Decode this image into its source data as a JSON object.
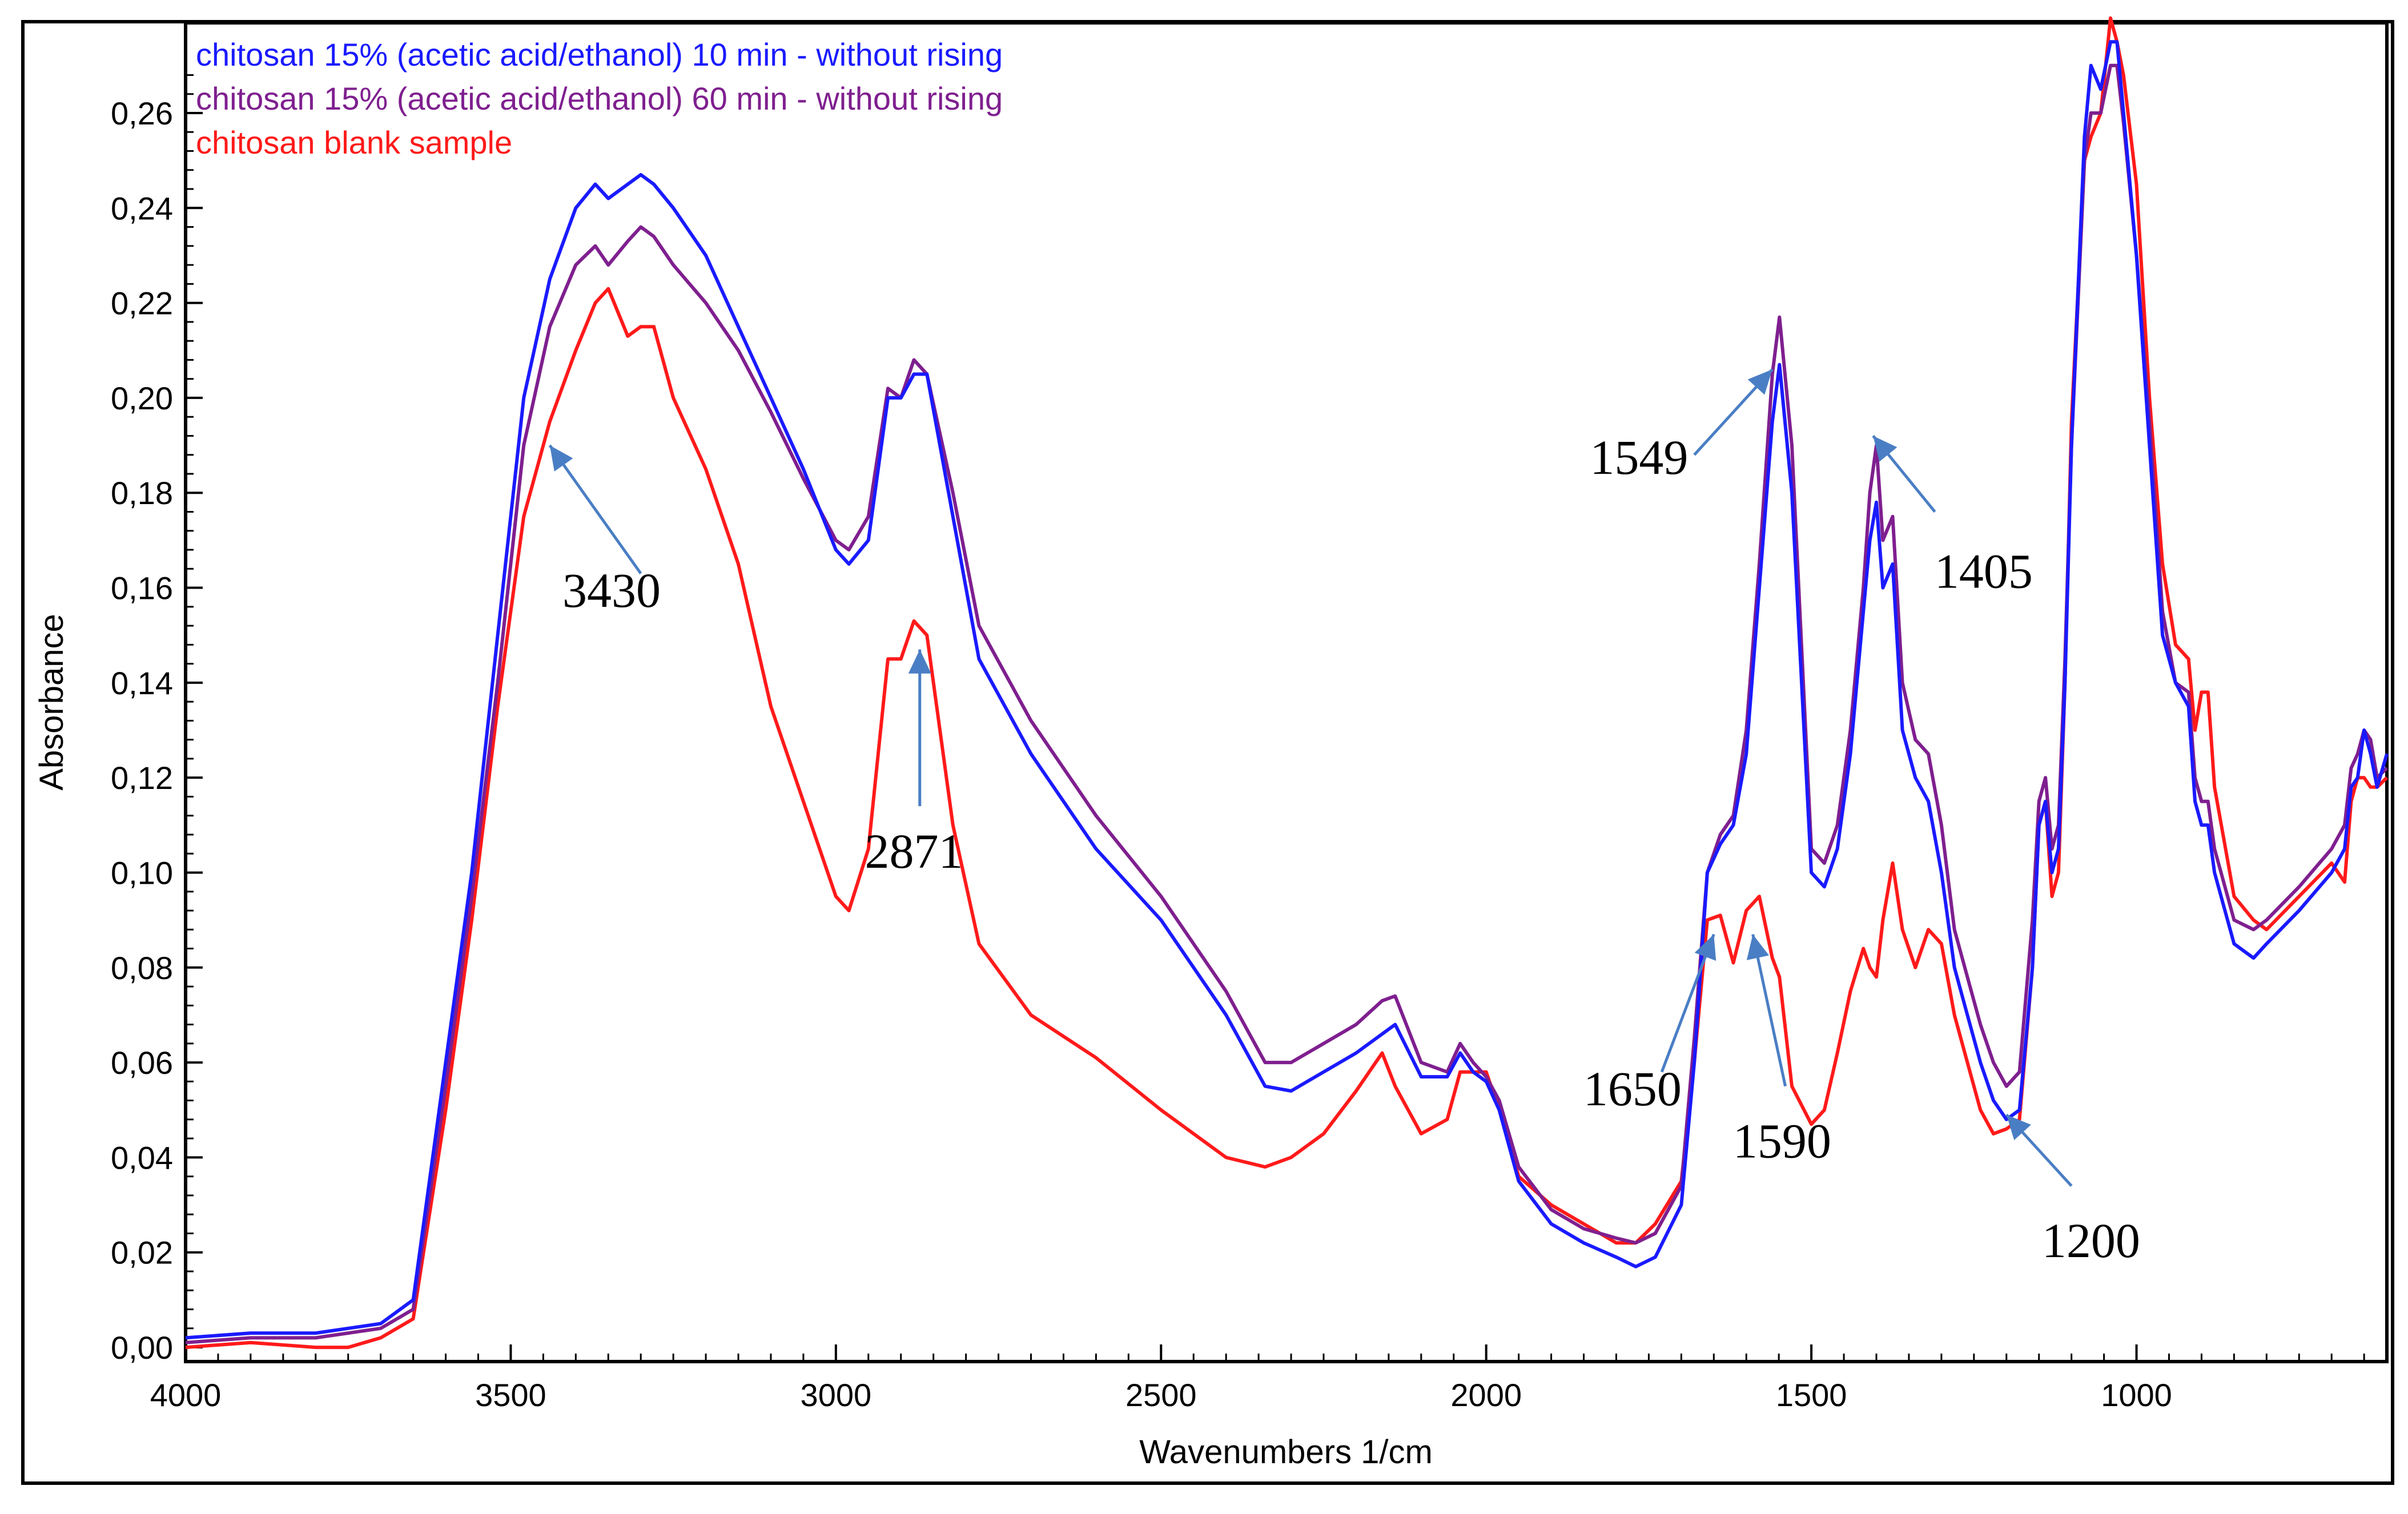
{
  "chart_data": {
    "type": "line",
    "title": "",
    "xlabel": "Wavenumbers 1/cm",
    "ylabel": "Absorbance",
    "xlim": [
      4000,
      615
    ],
    "ylim": [
      -0.003,
      0.279
    ],
    "x_ticks": [
      {
        "value": 4000,
        "label": "4000"
      },
      {
        "value": 3500,
        "label": "3500"
      },
      {
        "value": 3000,
        "label": "3000"
      },
      {
        "value": 2500,
        "label": "2500"
      },
      {
        "value": 2000,
        "label": "2000"
      },
      {
        "value": 1500,
        "label": "1500"
      },
      {
        "value": 1000,
        "label": "1000"
      }
    ],
    "y_ticks": [
      {
        "value": 0.0,
        "label": "0,00"
      },
      {
        "value": 0.02,
        "label": "0,02"
      },
      {
        "value": 0.04,
        "label": "0,04"
      },
      {
        "value": 0.06,
        "label": "0,06"
      },
      {
        "value": 0.08,
        "label": "0,08"
      },
      {
        "value": 0.1,
        "label": "0,10"
      },
      {
        "value": 0.12,
        "label": "0,12"
      },
      {
        "value": 0.14,
        "label": "0,14"
      },
      {
        "value": 0.16,
        "label": "0,16"
      },
      {
        "value": 0.18,
        "label": "0,18"
      },
      {
        "value": 0.2,
        "label": "0,20"
      },
      {
        "value": 0.22,
        "label": "0,22"
      },
      {
        "value": 0.24,
        "label": "0,24"
      },
      {
        "value": 0.26,
        "label": "0,26"
      }
    ],
    "legend_position": "top-left",
    "series": [
      {
        "name": "chitosan 15% (acetic acid/ethanol) 10 min - without rising",
        "color": "#1a1aff",
        "x": [
          4000,
          3900,
          3800,
          3750,
          3700,
          3650,
          3600,
          3560,
          3520,
          3480,
          3440,
          3400,
          3370,
          3350,
          3320,
          3300,
          3280,
          3250,
          3200,
          3150,
          3100,
          3050,
          3000,
          2980,
          2950,
          2920,
          2900,
          2880,
          2860,
          2820,
          2780,
          2700,
          2600,
          2500,
          2400,
          2340,
          2300,
          2250,
          2200,
          2160,
          2140,
          2100,
          2060,
          2040,
          2020,
          2000,
          1980,
          1950,
          1900,
          1850,
          1800,
          1770,
          1740,
          1700,
          1680,
          1660,
          1640,
          1620,
          1600,
          1580,
          1560,
          1549,
          1530,
          1500,
          1480,
          1460,
          1440,
          1420,
          1410,
          1400,
          1390,
          1375,
          1360,
          1340,
          1320,
          1300,
          1280,
          1260,
          1240,
          1220,
          1200,
          1180,
          1160,
          1150,
          1140,
          1130,
          1120,
          1110,
          1100,
          1080,
          1070,
          1055,
          1040,
          1030,
          1020,
          1000,
          980,
          960,
          940,
          920,
          910,
          900,
          890,
          880,
          850,
          820,
          800,
          750,
          700,
          680,
          670,
          660,
          650,
          640,
          630,
          615
        ],
        "y": [
          0.002,
          0.003,
          0.003,
          0.004,
          0.005,
          0.01,
          0.06,
          0.1,
          0.15,
          0.2,
          0.225,
          0.24,
          0.245,
          0.242,
          0.245,
          0.247,
          0.245,
          0.24,
          0.23,
          0.215,
          0.2,
          0.185,
          0.168,
          0.165,
          0.17,
          0.2,
          0.2,
          0.205,
          0.205,
          0.175,
          0.145,
          0.125,
          0.105,
          0.09,
          0.07,
          0.055,
          0.054,
          0.058,
          0.062,
          0.066,
          0.068,
          0.057,
          0.057,
          0.062,
          0.058,
          0.056,
          0.05,
          0.035,
          0.026,
          0.022,
          0.019,
          0.017,
          0.019,
          0.03,
          0.06,
          0.1,
          0.106,
          0.11,
          0.125,
          0.16,
          0.195,
          0.207,
          0.18,
          0.1,
          0.097,
          0.105,
          0.125,
          0.155,
          0.17,
          0.178,
          0.16,
          0.165,
          0.13,
          0.12,
          0.115,
          0.1,
          0.08,
          0.07,
          0.06,
          0.052,
          0.048,
          0.05,
          0.08,
          0.11,
          0.115,
          0.1,
          0.105,
          0.14,
          0.19,
          0.255,
          0.27,
          0.265,
          0.275,
          0.275,
          0.26,
          0.23,
          0.19,
          0.15,
          0.14,
          0.135,
          0.115,
          0.11,
          0.11,
          0.1,
          0.085,
          0.082,
          0.085,
          0.092,
          0.1,
          0.105,
          0.118,
          0.12,
          0.13,
          0.125,
          0.118,
          0.125
        ]
      },
      {
        "name": "chitosan 15% (acetic acid/ethanol) 60 min - without rising",
        "color": "#7f1f8f",
        "x": [
          4000,
          3900,
          3800,
          3750,
          3700,
          3650,
          3600,
          3560,
          3520,
          3480,
          3440,
          3400,
          3370,
          3350,
          3320,
          3300,
          3280,
          3250,
          3200,
          3150,
          3100,
          3050,
          3000,
          2980,
          2950,
          2920,
          2900,
          2880,
          2860,
          2820,
          2780,
          2700,
          2600,
          2500,
          2400,
          2340,
          2300,
          2250,
          2200,
          2160,
          2140,
          2100,
          2060,
          2040,
          2020,
          2000,
          1980,
          1950,
          1900,
          1850,
          1800,
          1770,
          1740,
          1700,
          1680,
          1660,
          1640,
          1620,
          1600,
          1580,
          1560,
          1549,
          1530,
          1500,
          1480,
          1460,
          1440,
          1420,
          1410,
          1400,
          1390,
          1375,
          1360,
          1340,
          1320,
          1300,
          1280,
          1260,
          1240,
          1220,
          1200,
          1180,
          1160,
          1150,
          1140,
          1130,
          1120,
          1110,
          1100,
          1080,
          1070,
          1055,
          1040,
          1030,
          1020,
          1000,
          980,
          960,
          940,
          920,
          910,
          900,
          890,
          880,
          850,
          820,
          800,
          750,
          700,
          680,
          670,
          660,
          650,
          640,
          630,
          615
        ],
        "y": [
          0.001,
          0.002,
          0.002,
          0.003,
          0.004,
          0.008,
          0.055,
          0.095,
          0.14,
          0.19,
          0.215,
          0.228,
          0.232,
          0.228,
          0.233,
          0.236,
          0.234,
          0.228,
          0.22,
          0.21,
          0.197,
          0.183,
          0.17,
          0.168,
          0.175,
          0.202,
          0.2,
          0.208,
          0.205,
          0.18,
          0.152,
          0.132,
          0.112,
          0.095,
          0.075,
          0.06,
          0.06,
          0.064,
          0.068,
          0.073,
          0.074,
          0.06,
          0.058,
          0.064,
          0.06,
          0.057,
          0.052,
          0.038,
          0.029,
          0.025,
          0.023,
          0.022,
          0.024,
          0.034,
          0.065,
          0.1,
          0.108,
          0.112,
          0.13,
          0.165,
          0.205,
          0.217,
          0.19,
          0.105,
          0.102,
          0.11,
          0.13,
          0.16,
          0.18,
          0.19,
          0.17,
          0.175,
          0.14,
          0.128,
          0.125,
          0.11,
          0.088,
          0.078,
          0.068,
          0.06,
          0.055,
          0.058,
          0.09,
          0.115,
          0.12,
          0.105,
          0.11,
          0.145,
          0.19,
          0.25,
          0.26,
          0.26,
          0.27,
          0.27,
          0.258,
          0.23,
          0.195,
          0.155,
          0.14,
          0.138,
          0.12,
          0.115,
          0.115,
          0.105,
          0.09,
          0.088,
          0.09,
          0.097,
          0.105,
          0.11,
          0.122,
          0.125,
          0.13,
          0.128,
          0.12,
          0.122
        ]
      },
      {
        "name": "chitosan blank sample",
        "color": "#ff1a1a",
        "x": [
          4000,
          3900,
          3800,
          3750,
          3700,
          3650,
          3600,
          3560,
          3520,
          3480,
          3440,
          3400,
          3370,
          3350,
          3320,
          3300,
          3280,
          3250,
          3200,
          3150,
          3100,
          3050,
          3000,
          2980,
          2950,
          2920,
          2900,
          2880,
          2860,
          2820,
          2780,
          2700,
          2600,
          2500,
          2400,
          2340,
          2300,
          2250,
          2200,
          2160,
          2140,
          2100,
          2060,
          2040,
          2020,
          2000,
          1980,
          1950,
          1900,
          1850,
          1800,
          1770,
          1740,
          1700,
          1680,
          1660,
          1640,
          1620,
          1600,
          1580,
          1560,
          1549,
          1530,
          1500,
          1480,
          1460,
          1440,
          1420,
          1410,
          1400,
          1390,
          1375,
          1360,
          1340,
          1320,
          1300,
          1280,
          1260,
          1240,
          1220,
          1200,
          1180,
          1160,
          1150,
          1140,
          1130,
          1120,
          1110,
          1100,
          1080,
          1070,
          1055,
          1040,
          1030,
          1020,
          1000,
          980,
          960,
          940,
          920,
          910,
          900,
          890,
          880,
          850,
          820,
          800,
          750,
          700,
          680,
          670,
          660,
          650,
          640,
          630,
          615
        ],
        "y": [
          0.0,
          0.001,
          0.0,
          0.0,
          0.002,
          0.006,
          0.05,
          0.09,
          0.135,
          0.175,
          0.195,
          0.21,
          0.22,
          0.223,
          0.213,
          0.215,
          0.215,
          0.2,
          0.185,
          0.165,
          0.135,
          0.115,
          0.095,
          0.092,
          0.105,
          0.145,
          0.145,
          0.153,
          0.15,
          0.11,
          0.085,
          0.07,
          0.061,
          0.05,
          0.04,
          0.038,
          0.04,
          0.045,
          0.054,
          0.062,
          0.055,
          0.045,
          0.048,
          0.058,
          0.058,
          0.058,
          0.05,
          0.036,
          0.03,
          0.026,
          0.022,
          0.022,
          0.026,
          0.035,
          0.06,
          0.09,
          0.091,
          0.081,
          0.092,
          0.095,
          0.082,
          0.078,
          0.055,
          0.047,
          0.05,
          0.062,
          0.075,
          0.084,
          0.08,
          0.078,
          0.09,
          0.102,
          0.088,
          0.08,
          0.088,
          0.085,
          0.07,
          0.06,
          0.05,
          0.045,
          0.046,
          0.048,
          0.08,
          0.11,
          0.115,
          0.095,
          0.1,
          0.14,
          0.195,
          0.25,
          0.255,
          0.26,
          0.28,
          0.275,
          0.268,
          0.245,
          0.2,
          0.165,
          0.148,
          0.145,
          0.13,
          0.138,
          0.138,
          0.118,
          0.095,
          0.09,
          0.088,
          0.095,
          0.102,
          0.098,
          0.115,
          0.12,
          0.12,
          0.118,
          0.118,
          0.12
        ]
      }
    ],
    "annotations": [
      {
        "label": "3430",
        "tip": [
          3440,
          0.19
        ],
        "tail": [
          3300,
          0.163
        ],
        "text_at": [
          3345,
          0.156
        ]
      },
      {
        "label": "2871",
        "tip": [
          2871,
          0.147
        ],
        "tail": [
          2871,
          0.114
        ],
        "text_at": [
          2880,
          0.101
        ]
      },
      {
        "label": "1549",
        "tip": [
          1560,
          0.206
        ],
        "tail": [
          1680,
          0.188
        ],
        "text_at": [
          1765,
          0.184
        ]
      },
      {
        "label": "1405",
        "tip": [
          1405,
          0.192
        ],
        "tail": [
          1310,
          0.176
        ],
        "text_at": [
          1235,
          0.16
        ]
      },
      {
        "label": "1650",
        "tip": [
          1650,
          0.087
        ],
        "tail": [
          1730,
          0.058
        ],
        "text_at": [
          1775,
          0.051
        ]
      },
      {
        "label": "1590",
        "tip": [
          1590,
          0.087
        ],
        "tail": [
          1540,
          0.055
        ],
        "text_at": [
          1545,
          0.04
        ]
      },
      {
        "label": "1200",
        "tip": [
          1200,
          0.049
        ],
        "tail": [
          1100,
          0.034
        ],
        "text_at": [
          1070,
          0.019
        ]
      }
    ]
  }
}
